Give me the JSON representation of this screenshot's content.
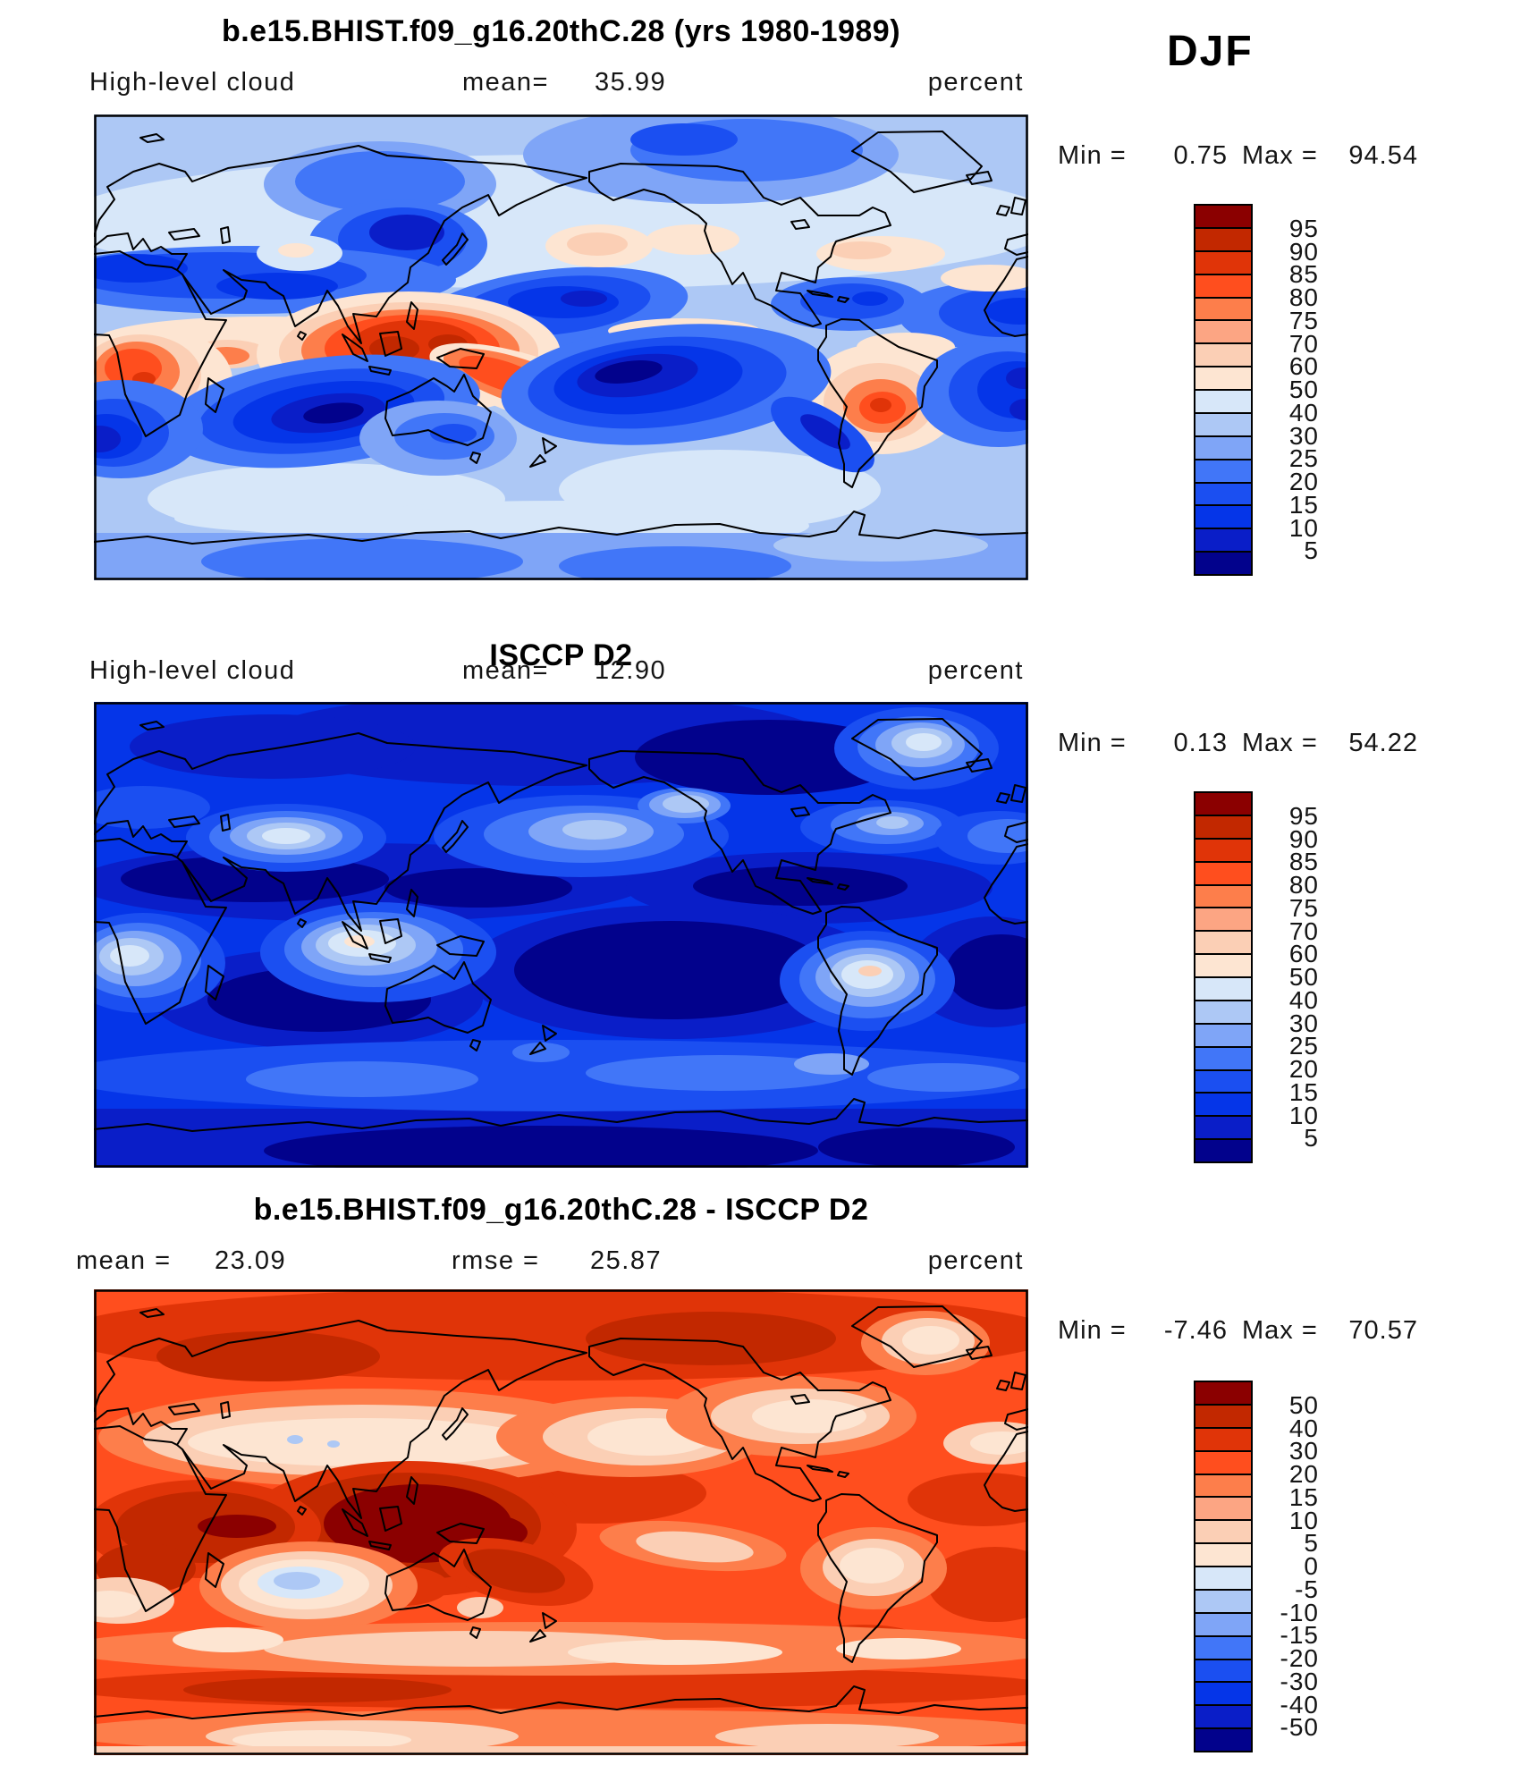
{
  "season": "DJF",
  "palette_percent": [
    "#8B0000",
    "#C22800",
    "#E03408",
    "#FF4E1E",
    "#FD7E4B",
    "#FCA583",
    "#FBCFB5",
    "#FDE5D2",
    "#D7E7F9",
    "#ADC8F5",
    "#7FA5F7",
    "#4176F8",
    "#1B4FF1",
    "#0535E8",
    "#0A1EC8",
    "#02028C"
  ],
  "panels": [
    {
      "title": "b.e15.BHIST.f09_g16.20thC.28 (yrs 1980-1989)",
      "variable": "High-level cloud",
      "mean_label": "mean=",
      "mean": "35.99",
      "units": "percent",
      "min_label": "Min =",
      "min": "0.75",
      "max_label": "Max =",
      "max": "94.54",
      "colorbar": {
        "colors": [
          "#8B0000",
          "#C22800",
          "#E03408",
          "#FF4E1E",
          "#FD7E4B",
          "#FCA583",
          "#FBCFB5",
          "#FDE5D2",
          "#D7E7F9",
          "#ADC8F5",
          "#7FA5F7",
          "#4176F8",
          "#1B4FF1",
          "#0535E8",
          "#0A1EC8",
          "#02028C"
        ],
        "labels": [
          "95",
          "90",
          "85",
          "80",
          "75",
          "70",
          "60",
          "50",
          "40",
          "30",
          "25",
          "20",
          "15",
          "10",
          "5"
        ]
      }
    },
    {
      "title": "ISCCP D2",
      "variable": "High-level cloud",
      "mean_label": "mean=",
      "mean": "12.90",
      "units": "percent",
      "min_label": "Min =",
      "min": "0.13",
      "max_label": "Max =",
      "max": "54.22",
      "colorbar": {
        "colors": [
          "#8B0000",
          "#C22800",
          "#E03408",
          "#FF4E1E",
          "#FD7E4B",
          "#FCA583",
          "#FBCFB5",
          "#FDE5D2",
          "#D7E7F9",
          "#ADC8F5",
          "#7FA5F7",
          "#4176F8",
          "#1B4FF1",
          "#0535E8",
          "#0A1EC8",
          "#02028C"
        ],
        "labels": [
          "95",
          "90",
          "85",
          "80",
          "75",
          "70",
          "60",
          "50",
          "40",
          "30",
          "25",
          "20",
          "15",
          "10",
          "5"
        ]
      }
    },
    {
      "title": "b.e15.BHIST.f09_g16.20thC.28 - ISCCP D2",
      "mean_label": "mean =",
      "mean": "23.09",
      "rmse_label": "rmse =",
      "rmse": "25.87",
      "units": "percent",
      "min_label": "Min =",
      "min": "-7.46",
      "max_label": "Max =",
      "max": "70.57",
      "colorbar": {
        "colors": [
          "#8B0000",
          "#C22800",
          "#E03408",
          "#FF4E1E",
          "#FD7E4B",
          "#FCA583",
          "#FBCFB5",
          "#FDE5D2",
          "#D7E7F9",
          "#ADC8F5",
          "#7FA5F7",
          "#4176F8",
          "#1B4FF1",
          "#0535E8",
          "#0A1EC8",
          "#02028C"
        ],
        "labels": [
          "50",
          "40",
          "30",
          "20",
          "15",
          "10",
          "5",
          "0",
          "-5",
          "-10",
          "-15",
          "-20",
          "-30",
          "-40",
          "-50"
        ]
      }
    }
  ],
  "chart_data": [
    {
      "type": "heatmap",
      "role": "model",
      "title": "b.e15.BHIST.f09_g16.20thC.28 (yrs 1980-1989)",
      "variable": "High-level cloud",
      "season": "DJF",
      "units": "percent",
      "mean": 35.99,
      "min": 0.75,
      "max": 94.54,
      "contour_levels": [
        5,
        10,
        15,
        20,
        25,
        30,
        40,
        50,
        60,
        70,
        75,
        80,
        85,
        90,
        95
      ],
      "projection": "global cylindrical equidistant, 0-360E, 90S-90N",
      "legend_position": "right"
    },
    {
      "type": "heatmap",
      "role": "observations",
      "title": "ISCCP D2",
      "variable": "High-level cloud",
      "season": "DJF",
      "units": "percent",
      "mean": 12.9,
      "min": 0.13,
      "max": 54.22,
      "contour_levels": [
        5,
        10,
        15,
        20,
        25,
        30,
        40,
        50,
        60,
        70,
        75,
        80,
        85,
        90,
        95
      ],
      "projection": "global cylindrical equidistant, 0-360E, 90S-90N",
      "legend_position": "right"
    },
    {
      "type": "heatmap",
      "role": "difference (model minus observations)",
      "title": "b.e15.BHIST.f09_g16.20thC.28 - ISCCP D2",
      "season": "DJF",
      "units": "percent",
      "mean": 23.09,
      "rmse": 25.87,
      "min": -7.46,
      "max": 70.57,
      "contour_levels": [
        -50,
        -40,
        -30,
        -20,
        -15,
        -10,
        -5,
        0,
        5,
        10,
        15,
        20,
        30,
        40,
        50
      ],
      "projection": "global cylindrical equidistant, 0-360E, 90S-90N",
      "legend_position": "right"
    }
  ]
}
